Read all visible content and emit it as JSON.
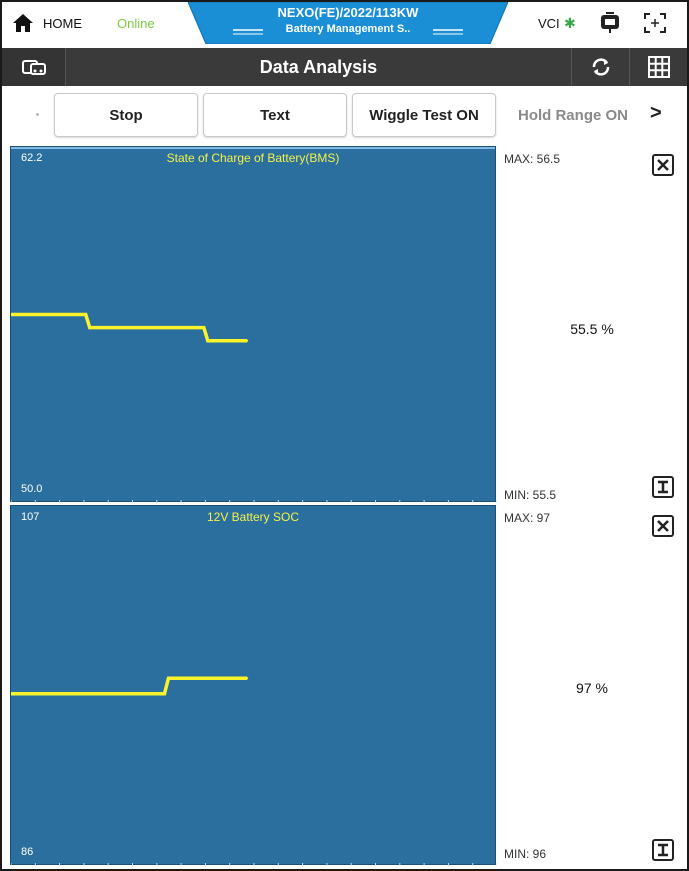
{
  "topbar": {
    "home_label": "HOME",
    "status": "Online",
    "vehicle_title": "NEXO(FE)/2022/113KW",
    "system_name": "Battery Management S..",
    "vci_label": "VCI",
    "bluetooth_icon": "bluetooth-icon",
    "status_color": "#7ac943",
    "tab_color": "#1a8fd6"
  },
  "titlebar": {
    "title": "Data Analysis",
    "left_icon": "car-info-icon",
    "right_icons": [
      "refresh-icon",
      "grid-icon"
    ]
  },
  "toolbar": {
    "buttons": [
      {
        "label": "Stop"
      },
      {
        "label": "Text"
      },
      {
        "label": "Wiggle Test ON"
      },
      {
        "label": "Hold Range ON",
        "disabled": true
      }
    ],
    "next_label": ">"
  },
  "graphs": [
    {
      "title": "State of Charge of Battery(BMS)",
      "axis_max": "62.2",
      "axis_min": "50.0",
      "max_label": "MAX: 56.5",
      "min_label": "MIN: 55.5",
      "current_value": "55.5 %",
      "line_color": "#f8f32b",
      "plot_color": "#2a6f9e",
      "chart_data": {
        "type": "line",
        "ylim": [
          50.0,
          62.2
        ],
        "x": [
          0,
          5,
          10,
          15,
          20,
          25,
          30
        ],
        "values": [
          56.5,
          56.5,
          56.0,
          56.0,
          56.0,
          55.5,
          55.5
        ]
      }
    },
    {
      "title": "12V Battery SOC",
      "axis_max": "107",
      "axis_min": "86",
      "max_label": "MAX: 97",
      "min_label": "MIN: 96",
      "current_value": "97 %",
      "line_color": "#f8f32b",
      "plot_color": "#2a6f9e",
      "chart_data": {
        "type": "line",
        "ylim": [
          86,
          107
        ],
        "x": [
          0,
          5,
          10,
          15,
          20,
          25,
          30
        ],
        "values": [
          96,
          96,
          96,
          96,
          97,
          97,
          97
        ]
      }
    }
  ]
}
